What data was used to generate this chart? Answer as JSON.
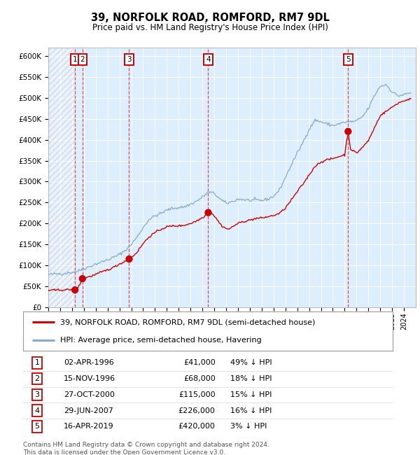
{
  "title": "39, NORFOLK ROAD, ROMFORD, RM7 9DL",
  "subtitle": "Price paid vs. HM Land Registry's House Price Index (HPI)",
  "footer1": "Contains HM Land Registry data © Crown copyright and database right 2024.",
  "footer2": "This data is licensed under the Open Government Licence v3.0.",
  "legend_line1": "39, NORFOLK ROAD, ROMFORD, RM7 9DL (semi-detached house)",
  "legend_line2": "HPI: Average price, semi-detached house, Havering",
  "table": [
    {
      "num": 1,
      "date": "02-APR-1996",
      "price": "£41,000",
      "hpi": "49% ↓ HPI"
    },
    {
      "num": 2,
      "date": "15-NOV-1996",
      "price": "£68,000",
      "hpi": "18% ↓ HPI"
    },
    {
      "num": 3,
      "date": "27-OCT-2000",
      "price": "£115,000",
      "hpi": "15% ↓ HPI"
    },
    {
      "num": 4,
      "date": "29-JUN-2007",
      "price": "£226,000",
      "hpi": "16% ↓ HPI"
    },
    {
      "num": 5,
      "date": "16-APR-2019",
      "price": "£420,000",
      "hpi": "3% ↓ HPI"
    }
  ],
  "sale_dates_decimal": [
    1996.25,
    1996.88,
    2000.82,
    2007.49,
    2019.29
  ],
  "sale_prices": [
    41000,
    68000,
    115000,
    226000,
    420000
  ],
  "sale_marker_color": "#cc0000",
  "red_line_color": "#cc0000",
  "blue_line_color": "#88aacc",
  "plot_bg": "#ddeeff",
  "grid_color": "#ffffff",
  "dashed_line_color": "#dd3333",
  "ylim": [
    0,
    620000
  ],
  "yticks": [
    0,
    50000,
    100000,
    150000,
    200000,
    250000,
    300000,
    350000,
    400000,
    450000,
    500000,
    550000,
    600000
  ],
  "ytick_labels": [
    "£0",
    "£50K",
    "£100K",
    "£150K",
    "£200K",
    "£250K",
    "£300K",
    "£350K",
    "£400K",
    "£450K",
    "£500K",
    "£550K",
    "£600K"
  ],
  "xmin": 1994.0,
  "xmax": 2025.0,
  "hpi_waypoints": [
    [
      1994.0,
      78000
    ],
    [
      1994.5,
      79000
    ],
    [
      1995.0,
      80000
    ],
    [
      1995.5,
      81000
    ],
    [
      1996.0,
      83000
    ],
    [
      1996.5,
      86000
    ],
    [
      1997.0,
      92000
    ],
    [
      1997.5,
      97000
    ],
    [
      1998.0,
      103000
    ],
    [
      1998.5,
      108000
    ],
    [
      1999.0,
      113000
    ],
    [
      1999.5,
      119000
    ],
    [
      2000.0,
      126000
    ],
    [
      2000.5,
      136000
    ],
    [
      2001.0,
      150000
    ],
    [
      2001.5,
      168000
    ],
    [
      2002.0,
      190000
    ],
    [
      2002.5,
      210000
    ],
    [
      2003.0,
      218000
    ],
    [
      2003.5,
      224000
    ],
    [
      2004.0,
      232000
    ],
    [
      2004.5,
      236000
    ],
    [
      2005.0,
      238000
    ],
    [
      2005.5,
      240000
    ],
    [
      2006.0,
      246000
    ],
    [
      2006.5,
      253000
    ],
    [
      2007.0,
      263000
    ],
    [
      2007.5,
      275000
    ],
    [
      2008.0,
      272000
    ],
    [
      2008.5,
      258000
    ],
    [
      2009.0,
      248000
    ],
    [
      2009.5,
      252000
    ],
    [
      2010.0,
      258000
    ],
    [
      2010.5,
      257000
    ],
    [
      2011.0,
      255000
    ],
    [
      2011.5,
      256000
    ],
    [
      2012.0,
      255000
    ],
    [
      2012.5,
      258000
    ],
    [
      2013.0,
      265000
    ],
    [
      2013.5,
      280000
    ],
    [
      2014.0,
      310000
    ],
    [
      2014.5,
      340000
    ],
    [
      2015.0,
      368000
    ],
    [
      2015.5,
      395000
    ],
    [
      2016.0,
      425000
    ],
    [
      2016.5,
      447000
    ],
    [
      2017.0,
      443000
    ],
    [
      2017.5,
      438000
    ],
    [
      2018.0,
      434000
    ],
    [
      2018.5,
      438000
    ],
    [
      2019.0,
      442000
    ],
    [
      2019.5,
      443000
    ],
    [
      2020.0,
      445000
    ],
    [
      2020.5,
      455000
    ],
    [
      2021.0,
      475000
    ],
    [
      2021.5,
      505000
    ],
    [
      2022.0,
      528000
    ],
    [
      2022.5,
      532000
    ],
    [
      2023.0,
      515000
    ],
    [
      2023.5,
      505000
    ],
    [
      2024.0,
      508000
    ],
    [
      2024.5,
      512000
    ]
  ],
  "red_waypoints": [
    [
      1994.0,
      40000
    ],
    [
      1994.5,
      40500
    ],
    [
      1995.0,
      41000
    ],
    [
      1995.5,
      41500
    ],
    [
      1996.0,
      42000
    ],
    [
      1996.25,
      41000
    ],
    [
      1996.5,
      46000
    ],
    [
      1996.88,
      68000
    ],
    [
      1997.0,
      70000
    ],
    [
      1997.5,
      73000
    ],
    [
      1998.0,
      78000
    ],
    [
      1998.5,
      84000
    ],
    [
      1999.0,
      89000
    ],
    [
      1999.5,
      95000
    ],
    [
      2000.0,
      103000
    ],
    [
      2000.5,
      110000
    ],
    [
      2000.82,
      115000
    ],
    [
      2001.0,
      118000
    ],
    [
      2001.5,
      132000
    ],
    [
      2002.0,
      152000
    ],
    [
      2002.5,
      168000
    ],
    [
      2003.0,
      178000
    ],
    [
      2003.5,
      186000
    ],
    [
      2004.0,
      192000
    ],
    [
      2004.5,
      194000
    ],
    [
      2005.0,
      194000
    ],
    [
      2005.5,
      196000
    ],
    [
      2006.0,
      200000
    ],
    [
      2006.5,
      206000
    ],
    [
      2007.0,
      214000
    ],
    [
      2007.49,
      226000
    ],
    [
      2007.7,
      228000
    ],
    [
      2008.0,
      218000
    ],
    [
      2008.3,
      207000
    ],
    [
      2008.6,
      195000
    ],
    [
      2009.0,
      188000
    ],
    [
      2009.3,
      186000
    ],
    [
      2009.5,
      192000
    ],
    [
      2010.0,
      200000
    ],
    [
      2010.5,
      205000
    ],
    [
      2011.0,
      208000
    ],
    [
      2011.5,
      212000
    ],
    [
      2012.0,
      213000
    ],
    [
      2012.5,
      216000
    ],
    [
      2013.0,
      219000
    ],
    [
      2013.5,
      224000
    ],
    [
      2014.0,
      237000
    ],
    [
      2014.5,
      256000
    ],
    [
      2015.0,
      276000
    ],
    [
      2015.5,
      295000
    ],
    [
      2016.0,
      316000
    ],
    [
      2016.5,
      337000
    ],
    [
      2017.0,
      347000
    ],
    [
      2017.5,
      352000
    ],
    [
      2018.0,
      355000
    ],
    [
      2018.5,
      360000
    ],
    [
      2019.0,
      364000
    ],
    [
      2019.29,
      420000
    ],
    [
      2019.5,
      378000
    ],
    [
      2020.0,
      368000
    ],
    [
      2020.5,
      382000
    ],
    [
      2021.0,
      398000
    ],
    [
      2021.5,
      428000
    ],
    [
      2022.0,
      458000
    ],
    [
      2022.5,
      468000
    ],
    [
      2023.0,
      478000
    ],
    [
      2023.5,
      488000
    ],
    [
      2024.0,
      493000
    ],
    [
      2024.5,
      498000
    ]
  ]
}
